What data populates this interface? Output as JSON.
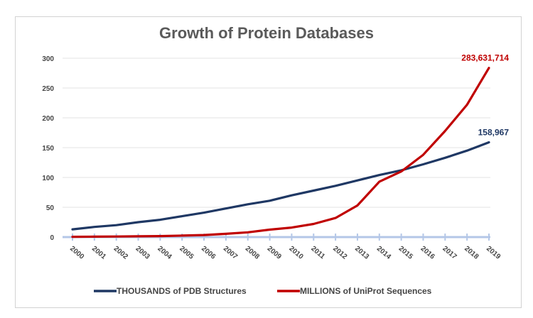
{
  "chart_data": {
    "type": "line",
    "title": "Growth of Protein Databases",
    "xlabel": "",
    "ylabel": "",
    "x": [
      "2000",
      "2001",
      "2002",
      "2003",
      "2004",
      "2005",
      "2006",
      "2007",
      "2008",
      "2009",
      "2010",
      "2011",
      "2012",
      "2013",
      "2014",
      "2015",
      "2016",
      "2017",
      "2018",
      "2019"
    ],
    "ylim": [
      0,
      300
    ],
    "yticks": [
      "0",
      "50",
      "100",
      "150",
      "200",
      "250",
      "300"
    ],
    "grid": true,
    "legend_position": "bottom",
    "series": [
      {
        "name": "THOUSANDS of PDB Structures",
        "color": "#1f3864",
        "values": [
          13,
          17,
          20,
          25,
          29,
          35,
          41,
          48,
          55,
          61,
          70,
          78,
          86,
          95,
          104,
          112,
          122,
          133,
          145,
          158.967
        ],
        "end_label": "158,967"
      },
      {
        "name": "MILLIONS of UniProt Sequences",
        "color": "#c00000",
        "values": [
          0.5,
          0.7,
          1,
          1.3,
          1.7,
          2.5,
          3.5,
          5.5,
          8,
          12.5,
          16,
          22,
          32,
          53,
          93,
          110,
          138,
          178,
          222,
          283.631714
        ],
        "end_label": "283,631,714"
      }
    ]
  }
}
